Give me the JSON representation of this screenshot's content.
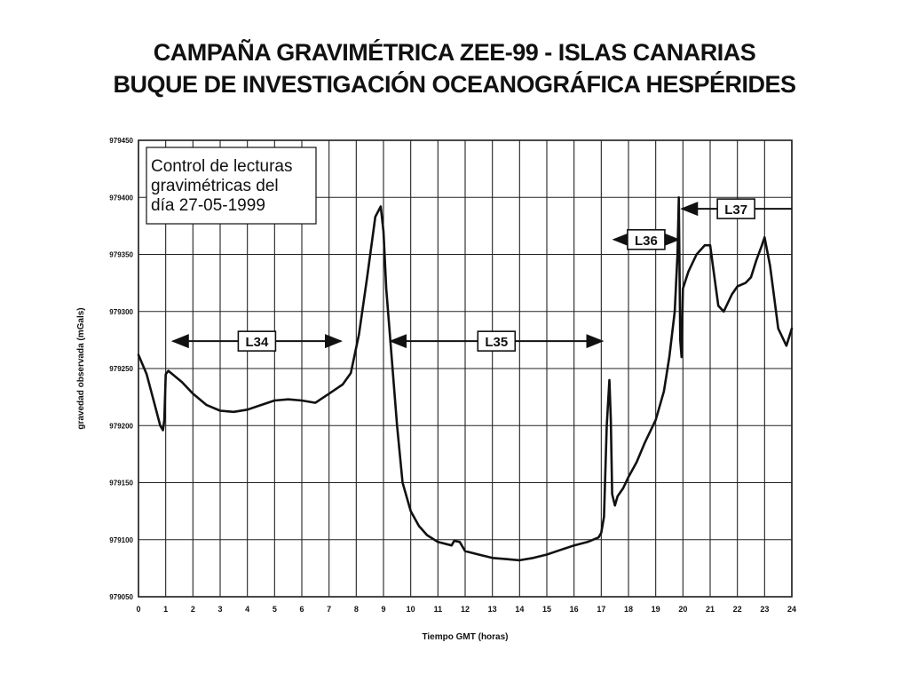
{
  "chart_data": {
    "type": "line",
    "title": "CAMPAÑA GRAVIMÉTRICA ZEE-99  -  ISLAS CANARIAS",
    "subtitle": "BUQUE DE INVESTIGACIÓN OCEANOGRÁFICA HESPÉRIDES",
    "xlabel": "Tiempo GMT (horas)",
    "ylabel": "gravedad observada (mGals)",
    "xlim": [
      0,
      24
    ],
    "ylim": [
      979050,
      979450
    ],
    "x_ticks": [
      0,
      1,
      2,
      3,
      4,
      5,
      6,
      7,
      8,
      9,
      10,
      11,
      12,
      13,
      14,
      15,
      16,
      17,
      18,
      19,
      20,
      21,
      22,
      23,
      24
    ],
    "y_ticks": [
      979050,
      979100,
      979150,
      979200,
      979250,
      979300,
      979350,
      979400,
      979450
    ],
    "grid": true,
    "annotation": [
      "Control de lecturas",
      "gravimétricas del",
      "día 27-05-1999"
    ],
    "segments": [
      {
        "label": "L34",
        "x_start": 1.2,
        "x_end": 7.5
      },
      {
        "label": "L35",
        "x_start": 9.2,
        "x_end": 17.1
      },
      {
        "label": "L36",
        "x_start": 17.4,
        "x_end": 19.9
      },
      {
        "label": "L37",
        "x_start": 19.9,
        "x_end": 24
      }
    ],
    "series": [
      {
        "x": [
          0,
          0.3,
          0.6,
          0.8,
          0.9,
          0.95,
          1.0,
          1.1,
          1.3,
          1.6,
          2.0,
          2.5,
          3.0,
          3.5,
          4.0,
          4.5,
          5.0,
          5.5,
          6.0,
          6.5,
          7.0,
          7.5,
          7.8,
          8.1,
          8.4,
          8.7,
          8.9,
          9.0,
          9.1,
          9.3,
          9.5,
          9.7,
          10.0,
          10.3,
          10.6,
          11.0,
          11.5,
          11.6,
          11.8,
          12.0,
          12.5,
          13.0,
          13.5,
          14.0,
          14.5,
          15.0,
          15.5,
          16.0,
          16.5,
          16.9,
          17.0,
          17.1,
          17.2,
          17.3,
          17.35,
          17.4,
          17.5,
          17.6,
          17.8,
          18.0,
          18.3,
          18.6,
          19.0,
          19.3,
          19.5,
          19.7,
          19.8,
          19.85,
          19.9,
          19.95,
          20.0,
          20.2,
          20.5,
          20.8,
          21.0,
          21.1,
          21.3,
          21.5,
          21.8,
          22.0,
          22.3,
          22.5,
          22.7,
          22.9,
          23.0,
          23.2,
          23.5,
          23.8,
          24.0
        ],
        "values": [
          979262,
          979245,
          979218,
          979200,
          979196,
          979205,
          979245,
          979248,
          979244,
          979238,
          979228,
          979218,
          979213,
          979212,
          979214,
          979218,
          979222,
          979223,
          979222,
          979220,
          979228,
          979236,
          979246,
          979280,
          979330,
          979383,
          979392,
          979370,
          979320,
          979260,
          979200,
          979150,
          979125,
          979112,
          979104,
          979098,
          979095,
          979099,
          979098,
          979090,
          979087,
          979084,
          979083,
          979082,
          979084,
          979087,
          979091,
          979095,
          979098,
          979102,
          979106,
          979120,
          979200,
          979240,
          979205,
          979140,
          979130,
          979138,
          979145,
          979155,
          979168,
          979185,
          979205,
          979230,
          979260,
          979300,
          979350,
          979400,
          979275,
          979260,
          979320,
          979335,
          979350,
          979358,
          979358,
          979340,
          979305,
          979300,
          979315,
          979322,
          979325,
          979330,
          979345,
          979358,
          979365,
          979340,
          979285,
          979270,
          979285
        ]
      }
    ]
  }
}
